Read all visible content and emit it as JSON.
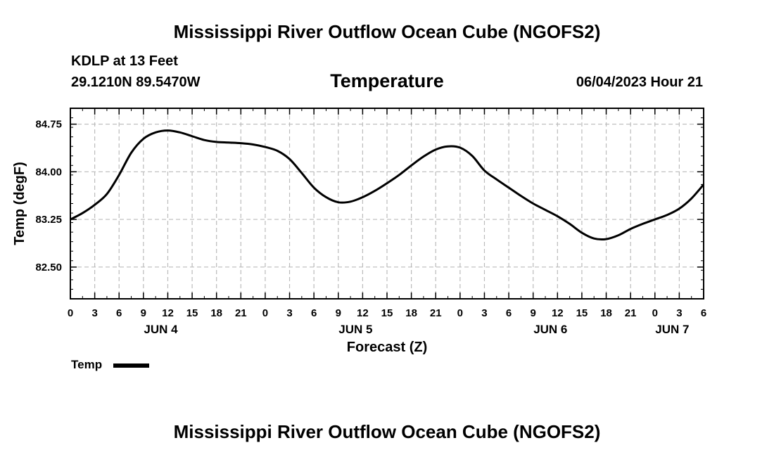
{
  "header": {
    "title": "Mississippi River Outflow Ocean Cube (NGOFS2)",
    "station": "KDLP at 13 Feet",
    "coordinates": "29.1210N  89.5470W",
    "variable": "Temperature",
    "timestamp": "06/04/2023 Hour 21"
  },
  "footer": {
    "title": "Mississippi River Outflow Ocean Cube (NGOFS2)"
  },
  "chart_data": {
    "type": "line",
    "title": "Temperature",
    "xlabel": "Forecast (Z)",
    "ylabel": "Temp (degF)",
    "xlim": [
      0,
      78
    ],
    "ylim": [
      82.0,
      85.0
    ],
    "yticks": [
      82.5,
      83.25,
      84.0,
      84.75
    ],
    "ytick_labels": [
      "82.50",
      "83.25",
      "84.00",
      "84.75"
    ],
    "xticks": [
      0,
      3,
      6,
      9,
      12,
      15,
      18,
      21,
      24,
      27,
      30,
      33,
      36,
      39,
      42,
      45,
      48,
      51,
      54,
      57,
      60,
      63,
      66,
      69,
      72,
      75,
      78
    ],
    "xtick_labels": [
      "0",
      "3",
      "6",
      "9",
      "12",
      "15",
      "18",
      "21",
      "0",
      "3",
      "6",
      "9",
      "12",
      "15",
      "18",
      "21",
      "0",
      "3",
      "6",
      "9",
      "12",
      "15",
      "18",
      "21",
      "0",
      "3",
      "6"
    ],
    "day_labels": [
      {
        "label": "JUN 4",
        "x": 12
      },
      {
        "label": "JUN 5",
        "x": 36
      },
      {
        "label": "JUN 6",
        "x": 60
      },
      {
        "label": "JUN 7",
        "x": 75
      }
    ],
    "grid": true,
    "legend": {
      "position": "bottom-left",
      "entries": [
        "Temp"
      ]
    },
    "series": [
      {
        "name": "Temp",
        "color": "#000000",
        "x": [
          0,
          1.5,
          3,
          4.5,
          6,
          7.5,
          9,
          10.5,
          12,
          13.5,
          15,
          16.5,
          18,
          19.5,
          21,
          22.5,
          24,
          25.5,
          27,
          28.5,
          30,
          31.5,
          33,
          34.5,
          36,
          37.5,
          39,
          40.5,
          42,
          43.5,
          45,
          46.5,
          48,
          49.5,
          51,
          52.5,
          54,
          55.5,
          57,
          58.5,
          60,
          61.5,
          63,
          64.5,
          66,
          67.5,
          69,
          70.5,
          72,
          73.5,
          75,
          76.5,
          78
        ],
        "values": [
          83.25,
          83.35,
          83.48,
          83.65,
          83.95,
          84.3,
          84.52,
          84.62,
          84.65,
          84.62,
          84.56,
          84.5,
          84.47,
          84.46,
          84.45,
          84.43,
          84.39,
          84.33,
          84.2,
          83.98,
          83.75,
          83.6,
          83.52,
          83.53,
          83.6,
          83.7,
          83.82,
          83.95,
          84.1,
          84.24,
          84.35,
          84.4,
          84.38,
          84.25,
          84.02,
          83.88,
          83.75,
          83.62,
          83.5,
          83.4,
          83.3,
          83.18,
          83.04,
          82.95,
          82.94,
          83.0,
          83.1,
          83.18,
          83.25,
          83.32,
          83.42,
          83.58,
          83.8
        ]
      }
    ]
  }
}
